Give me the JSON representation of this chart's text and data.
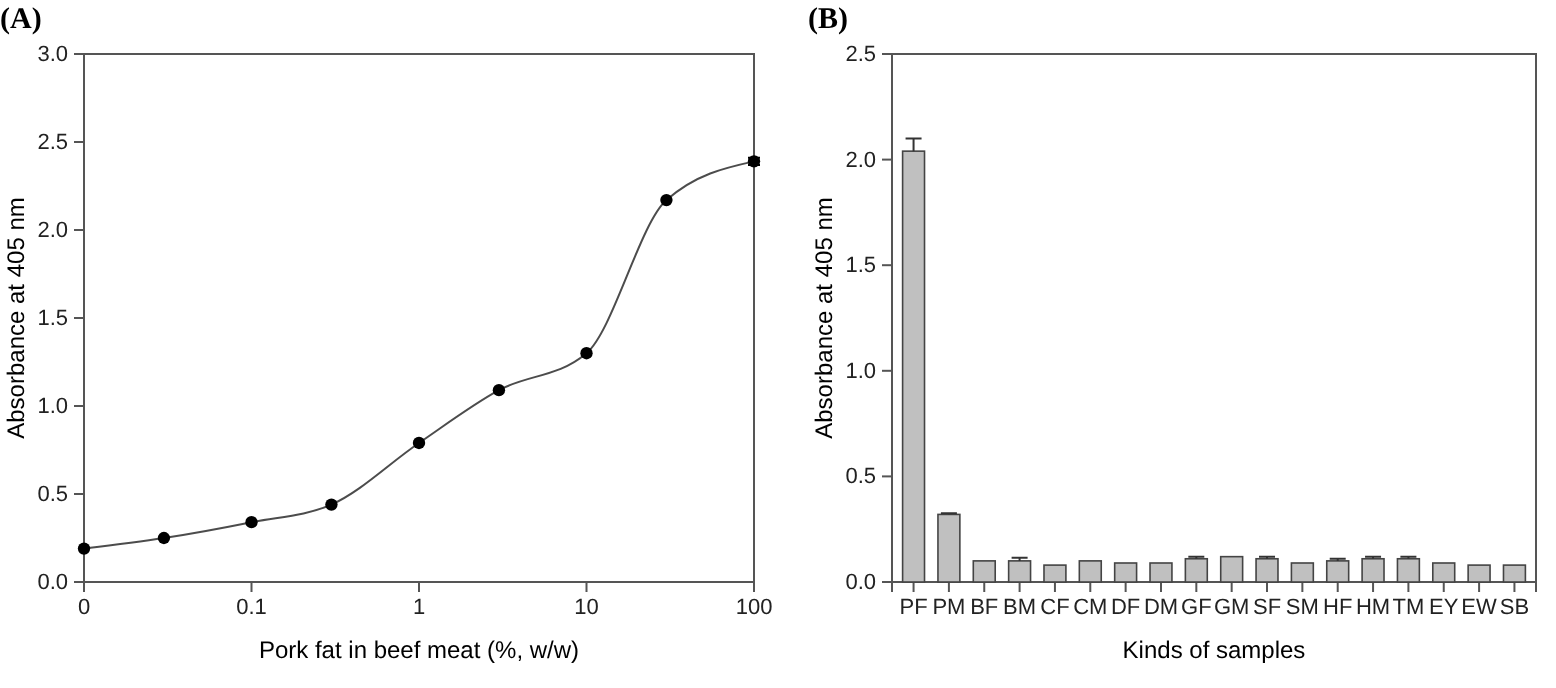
{
  "chart_data": [
    {
      "type": "line",
      "title": "(A)",
      "xlabel": "Pork fat in beef meat (%, w/w)",
      "ylabel": "Absorbance at 405 nm",
      "log": "x",
      "x": [
        0.01,
        0.03,
        0.1,
        0.3,
        1,
        3,
        10,
        30,
        100
      ],
      "series": [
        {
          "color": "#000000",
          "values": [
            0.19,
            0.25,
            0.34,
            0.44,
            0.79,
            1.09,
            1.3,
            2.17,
            2.39
          ],
          "errors": [
            null,
            null,
            null,
            null,
            null,
            null,
            null,
            null,
            0.02
          ]
        }
      ],
      "xlim": [
        0.01,
        100
      ],
      "xticks": [
        {
          "value": 0.01,
          "label": "0"
        },
        0.1,
        1,
        10,
        100
      ],
      "ylim": [
        0,
        3
      ],
      "yticks": [
        {
          "value": 0,
          "label": "0.0"
        },
        0.5,
        {
          "value": 1,
          "label": "1.0"
        },
        1.5,
        {
          "value": 2,
          "label": "2.0"
        },
        2.5,
        {
          "value": 3,
          "label": "3.0"
        }
      ],
      "marker": "circle",
      "line_style": "solid"
    },
    {
      "type": "bar",
      "title": "(B)",
      "xlabel": "Kinds of samples",
      "ylabel": "Absorbance at 405 nm",
      "categories": [
        "PF",
        "PM",
        "BF",
        "BM",
        "CF",
        "CM",
        "DF",
        "DM",
        "GF",
        "GM",
        "SF",
        "SM",
        "HF",
        "HM",
        "TM",
        "EY",
        "EW",
        "SB"
      ],
      "series": [
        {
          "color": "#c0c0c0",
          "values": [
            2.04,
            0.32,
            0.1,
            0.1,
            0.08,
            0.1,
            0.09,
            0.09,
            0.11,
            0.12,
            0.11,
            0.09,
            0.1,
            0.11,
            0.11,
            0.09,
            0.08,
            0.08
          ],
          "errors": [
            0.06,
            0.005,
            null,
            0.015,
            null,
            null,
            null,
            null,
            0.01,
            null,
            0.01,
            null,
            0.01,
            0.01,
            0.01,
            null,
            null,
            null
          ]
        }
      ],
      "ylim": [
        0,
        2.5
      ],
      "yticks": [
        {
          "value": 0,
          "label": "0.0"
        },
        0.5,
        {
          "value": 1,
          "label": "1.0"
        },
        1.5,
        {
          "value": 2,
          "label": "2.0"
        },
        2.5
      ],
      "orientation": "vertical"
    }
  ]
}
